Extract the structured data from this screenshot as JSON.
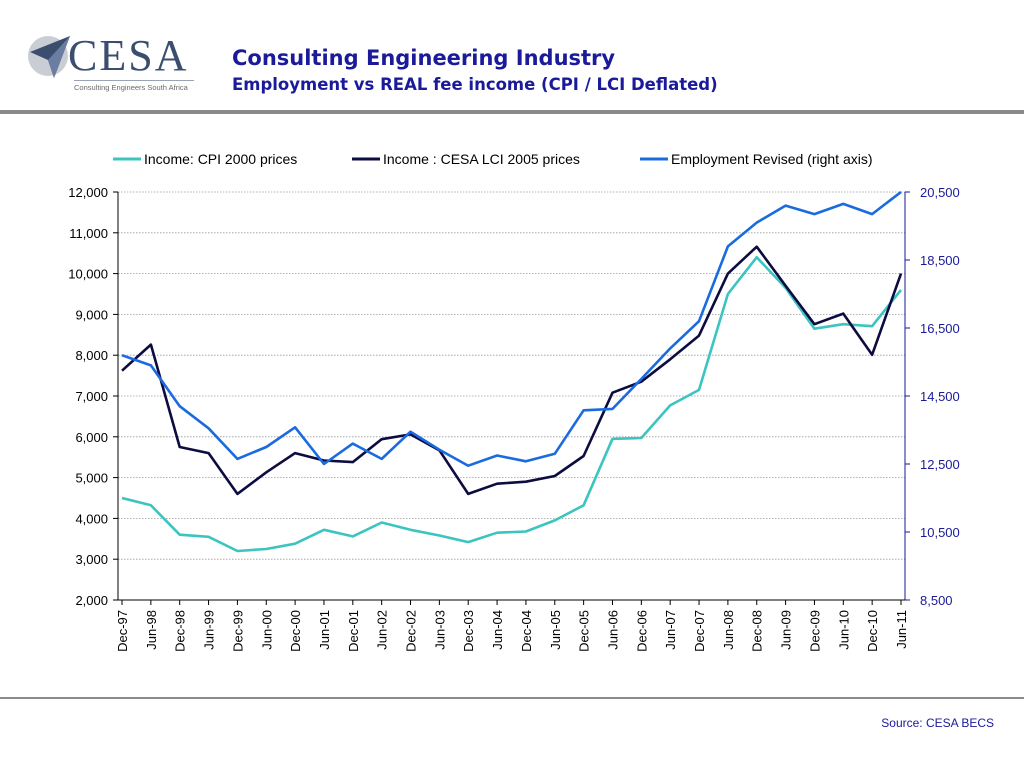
{
  "header": {
    "logo_text": "CESA",
    "logo_subtext": "Consulting Engineers South Africa",
    "title": "Consulting Engineering Industry",
    "subtitle": "Employment vs REAL fee income (CPI / LCI Deflated)"
  },
  "footer": {
    "source": "Source: CESA BECS"
  },
  "colors": {
    "title": "#1a1a9a",
    "cpi": "#3cc4c0",
    "lci": "#0c0c40",
    "employment": "#1a6ae0"
  },
  "chart_data": {
    "type": "line",
    "title": "",
    "categories": [
      "Dec-97",
      "Jun-98",
      "Dec-98",
      "Jun-99",
      "Dec-99",
      "Jun-00",
      "Dec-00",
      "Jun-01",
      "Dec-01",
      "Jun-02",
      "Dec-02",
      "Jun-03",
      "Dec-03",
      "Jun-04",
      "Dec-04",
      "Jun-05",
      "Dec-05",
      "Jun-06",
      "Dec-06",
      "Jun-07",
      "Dec-07",
      "Jun-08",
      "Dec-08",
      "Jun-09",
      "Dec-09",
      "Jun-10",
      "Dec-10",
      "Jun-11"
    ],
    "legend_position": "top",
    "grid": true,
    "y_left": {
      "min": 2000,
      "max": 12000,
      "ticks": [
        "2,000",
        "3,000",
        "4,000",
        "5,000",
        "6,000",
        "7,000",
        "8,000",
        "9,000",
        "10,000",
        "11,000",
        "12,000"
      ]
    },
    "y_right": {
      "min": 8500,
      "max": 20500,
      "ticks": [
        "8,500",
        "10,500",
        "12,500",
        "14,500",
        "16,500",
        "18,500",
        "20,500"
      ]
    },
    "series": [
      {
        "name": "Income: CPI 2000 prices",
        "axis": "left",
        "values": [
          4500,
          4320,
          3600,
          3550,
          3200,
          3250,
          3380,
          3720,
          3560,
          3900,
          3720,
          3580,
          3420,
          3650,
          3680,
          3950,
          4320,
          5950,
          5970,
          6770,
          7150,
          9500,
          10400,
          9650,
          8650,
          8760,
          8710,
          9600
        ]
      },
      {
        "name": "Income : CESA LCI 2005 prices",
        "axis": "left",
        "values": [
          7620,
          8260,
          5750,
          5600,
          4600,
          5130,
          5600,
          5420,
          5380,
          5940,
          6060,
          5670,
          4600,
          4850,
          4900,
          5040,
          5530,
          7080,
          7350,
          7900,
          8480,
          10000,
          10660,
          9700,
          8760,
          9020,
          8010,
          10000
        ]
      },
      {
        "name": "Employment Revised (right axis)",
        "axis": "right",
        "values": [
          15700,
          15400,
          14200,
          13550,
          12650,
          13000,
          13580,
          12500,
          13100,
          12650,
          13450,
          12920,
          12450,
          12750,
          12580,
          12800,
          14080,
          14120,
          15000,
          15900,
          16700,
          18900,
          19600,
          20100,
          19850,
          20150,
          19850,
          20500
        ]
      }
    ]
  }
}
